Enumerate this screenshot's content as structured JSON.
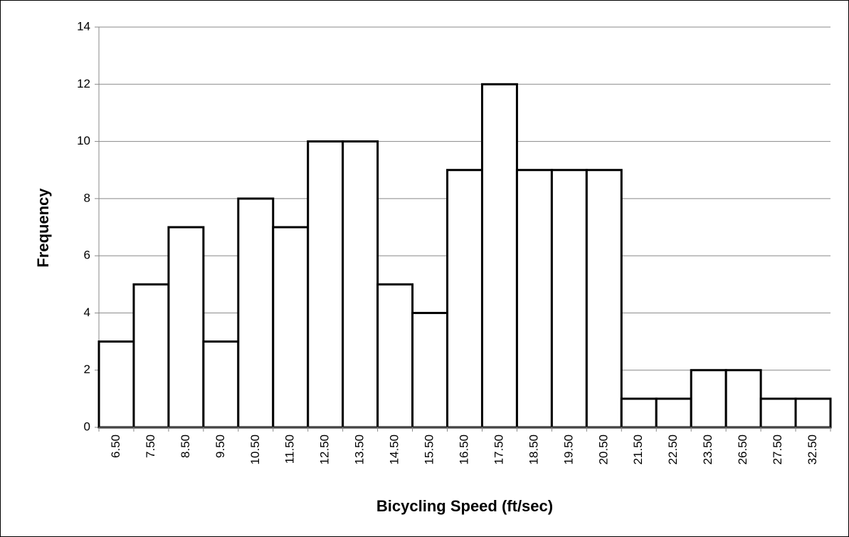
{
  "chart_data": {
    "type": "bar",
    "categories": [
      "6.50",
      "7.50",
      "8.50",
      "9.50",
      "10.50",
      "11.50",
      "12.50",
      "13.50",
      "14.50",
      "15.50",
      "16.50",
      "17.50",
      "18.50",
      "19.50",
      "20.50",
      "21.50",
      "22.50",
      "23.50",
      "26.50",
      "27.50",
      "32.50"
    ],
    "values": [
      3,
      5,
      7,
      3,
      8,
      7,
      10,
      10,
      5,
      4,
      9,
      12,
      9,
      9,
      9,
      1,
      1,
      2,
      2,
      1,
      1
    ],
    "color": "#ffffff",
    "xlabel": "Bicycling Speed (ft/sec)",
    "ylabel": "Frequency",
    "ylim": [
      0,
      14
    ],
    "yticks": [
      0,
      2,
      4,
      6,
      8,
      10,
      12,
      14
    ],
    "grid": true
  }
}
